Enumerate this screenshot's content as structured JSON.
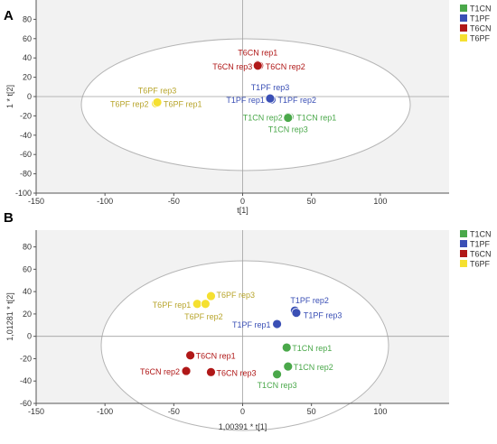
{
  "chart_data": [
    {
      "type": "scatter",
      "panel_label": "A",
      "xlabel": "t[1]",
      "ylabel": "1 * t[2]",
      "xlim": [
        -150,
        150
      ],
      "ylim": [
        -100,
        100
      ],
      "xticks": [
        -150,
        -100,
        -50,
        0,
        50,
        100
      ],
      "yticks": [
        -100,
        -80,
        -60,
        -40,
        -20,
        0,
        20,
        40,
        60,
        80
      ],
      "legend": {
        "position": "top-right"
      },
      "series": [
        {
          "name": "T1CN",
          "color": "#4aa84a",
          "points": [
            {
              "label": "T1CN rep1",
              "x": 34,
              "y": -21
            },
            {
              "label": "T1CN rep2",
              "x": 33,
              "y": -21
            },
            {
              "label": "T1CN rep3",
              "x": 33,
              "y": -22
            }
          ]
        },
        {
          "name": "T1PF",
          "color": "#3a4fb5",
          "points": [
            {
              "label": "T1PF rep1",
              "x": 20,
              "y": -3
            },
            {
              "label": "T1PF rep2",
              "x": 21,
              "y": -3
            },
            {
              "label": "T1PF rep3",
              "x": 20,
              "y": -2
            }
          ]
        },
        {
          "name": "T6CN",
          "color": "#b01818",
          "points": [
            {
              "label": "T6CN rep1",
              "x": 11,
              "y": 33
            },
            {
              "label": "T6CN rep2",
              "x": 12,
              "y": 32
            },
            {
              "label": "T6CN rep3",
              "x": 11,
              "y": 32
            }
          ]
        },
        {
          "name": "T6PF",
          "color": "#f5e030",
          "points": [
            {
              "label": "T6PF rep1",
              "x": -62,
              "y": -7
            },
            {
              "label": "T6PF rep2",
              "x": -63,
              "y": -7
            },
            {
              "label": "T6PF rep3",
              "x": -62,
              "y": -6
            }
          ]
        }
      ]
    },
    {
      "type": "scatter",
      "panel_label": "B",
      "xlabel": "1,00391 * t[1]",
      "ylabel": "1,01281 * t[2]",
      "xlim": [
        -150,
        150
      ],
      "ylim": [
        -60,
        95
      ],
      "xticks": [
        -150,
        -100,
        -50,
        0,
        50,
        100
      ],
      "yticks": [
        -60,
        -40,
        -20,
        0,
        20,
        40,
        60,
        80
      ],
      "legend": {
        "position": "top-right"
      },
      "series": [
        {
          "name": "T1CN",
          "color": "#4aa84a",
          "points": [
            {
              "label": "T1CN rep1",
              "x": 32,
              "y": -10
            },
            {
              "label": "T1CN rep2",
              "x": 33,
              "y": -27
            },
            {
              "label": "T1CN rep3",
              "x": 25,
              "y": -34
            }
          ]
        },
        {
          "name": "T1PF",
          "color": "#3a4fb5",
          "points": [
            {
              "label": "T1PF rep1",
              "x": 25,
              "y": 11
            },
            {
              "label": "T1PF rep2",
              "x": 38,
              "y": 23
            },
            {
              "label": "T1PF rep3",
              "x": 39,
              "y": 21
            }
          ]
        },
        {
          "name": "T6CN",
          "color": "#b01818",
          "points": [
            {
              "label": "T6CN rep1",
              "x": -38,
              "y": -17
            },
            {
              "label": "T6CN rep2",
              "x": -41,
              "y": -31
            },
            {
              "label": "T6CN rep3",
              "x": -23,
              "y": -32
            }
          ]
        },
        {
          "name": "T6PF",
          "color": "#f5e030",
          "points": [
            {
              "label": "T6PF rep1",
              "x": -33,
              "y": 29
            },
            {
              "label": "T6PF rep2",
              "x": -27,
              "y": 29
            },
            {
              "label": "T6PF rep3",
              "x": -23,
              "y": 36
            }
          ]
        }
      ]
    }
  ]
}
